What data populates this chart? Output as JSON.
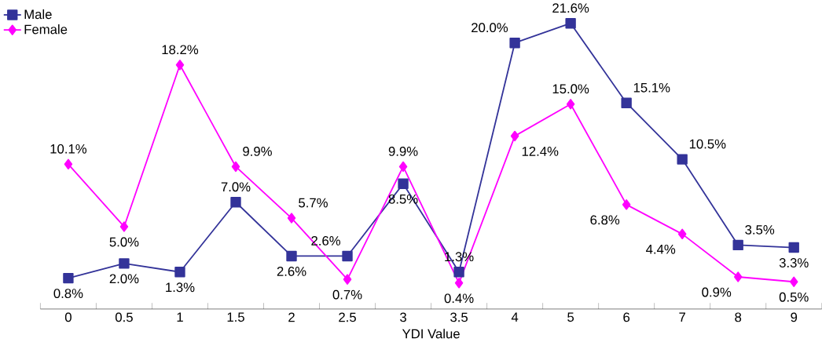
{
  "chart_data": {
    "type": "line",
    "xlabel": "YDI Value",
    "categories": [
      "0",
      "0.5",
      "1",
      "1.5",
      "2",
      "2.5",
      "3",
      "3.5",
      "4",
      "5",
      "6",
      "7",
      "8",
      "9"
    ],
    "series": [
      {
        "name": "Male",
        "color": "#333399",
        "marker": "square",
        "values": [
          0.8,
          2.0,
          1.3,
          7.0,
          2.6,
          2.6,
          8.5,
          1.3,
          20.0,
          21.6,
          15.1,
          10.5,
          3.5,
          3.3
        ],
        "value_labels": [
          "0.8%",
          "2.0%",
          "1.3%",
          "7.0%",
          "2.6%",
          "2.6%",
          "8.5%",
          "1.3%",
          "20.0%",
          "21.6%",
          "15.1%",
          "10.5%",
          "3.5%",
          "3.3%"
        ]
      },
      {
        "name": "Female",
        "color": "#ff00ff",
        "marker": "diamond",
        "values": [
          10.1,
          5.0,
          18.2,
          9.9,
          5.7,
          0.7,
          9.9,
          0.4,
          12.4,
          15.0,
          6.8,
          4.4,
          0.9,
          0.5
        ],
        "value_labels": [
          "10.1%",
          "5.0%",
          "18.2%",
          "9.9%",
          "5.7%",
          "0.7%",
          "9.9%",
          "0.4%",
          "12.4%",
          "15.0%",
          "6.8%",
          "4.4%",
          "0.9%",
          "0.5%"
        ]
      }
    ],
    "legend": "top left"
  }
}
